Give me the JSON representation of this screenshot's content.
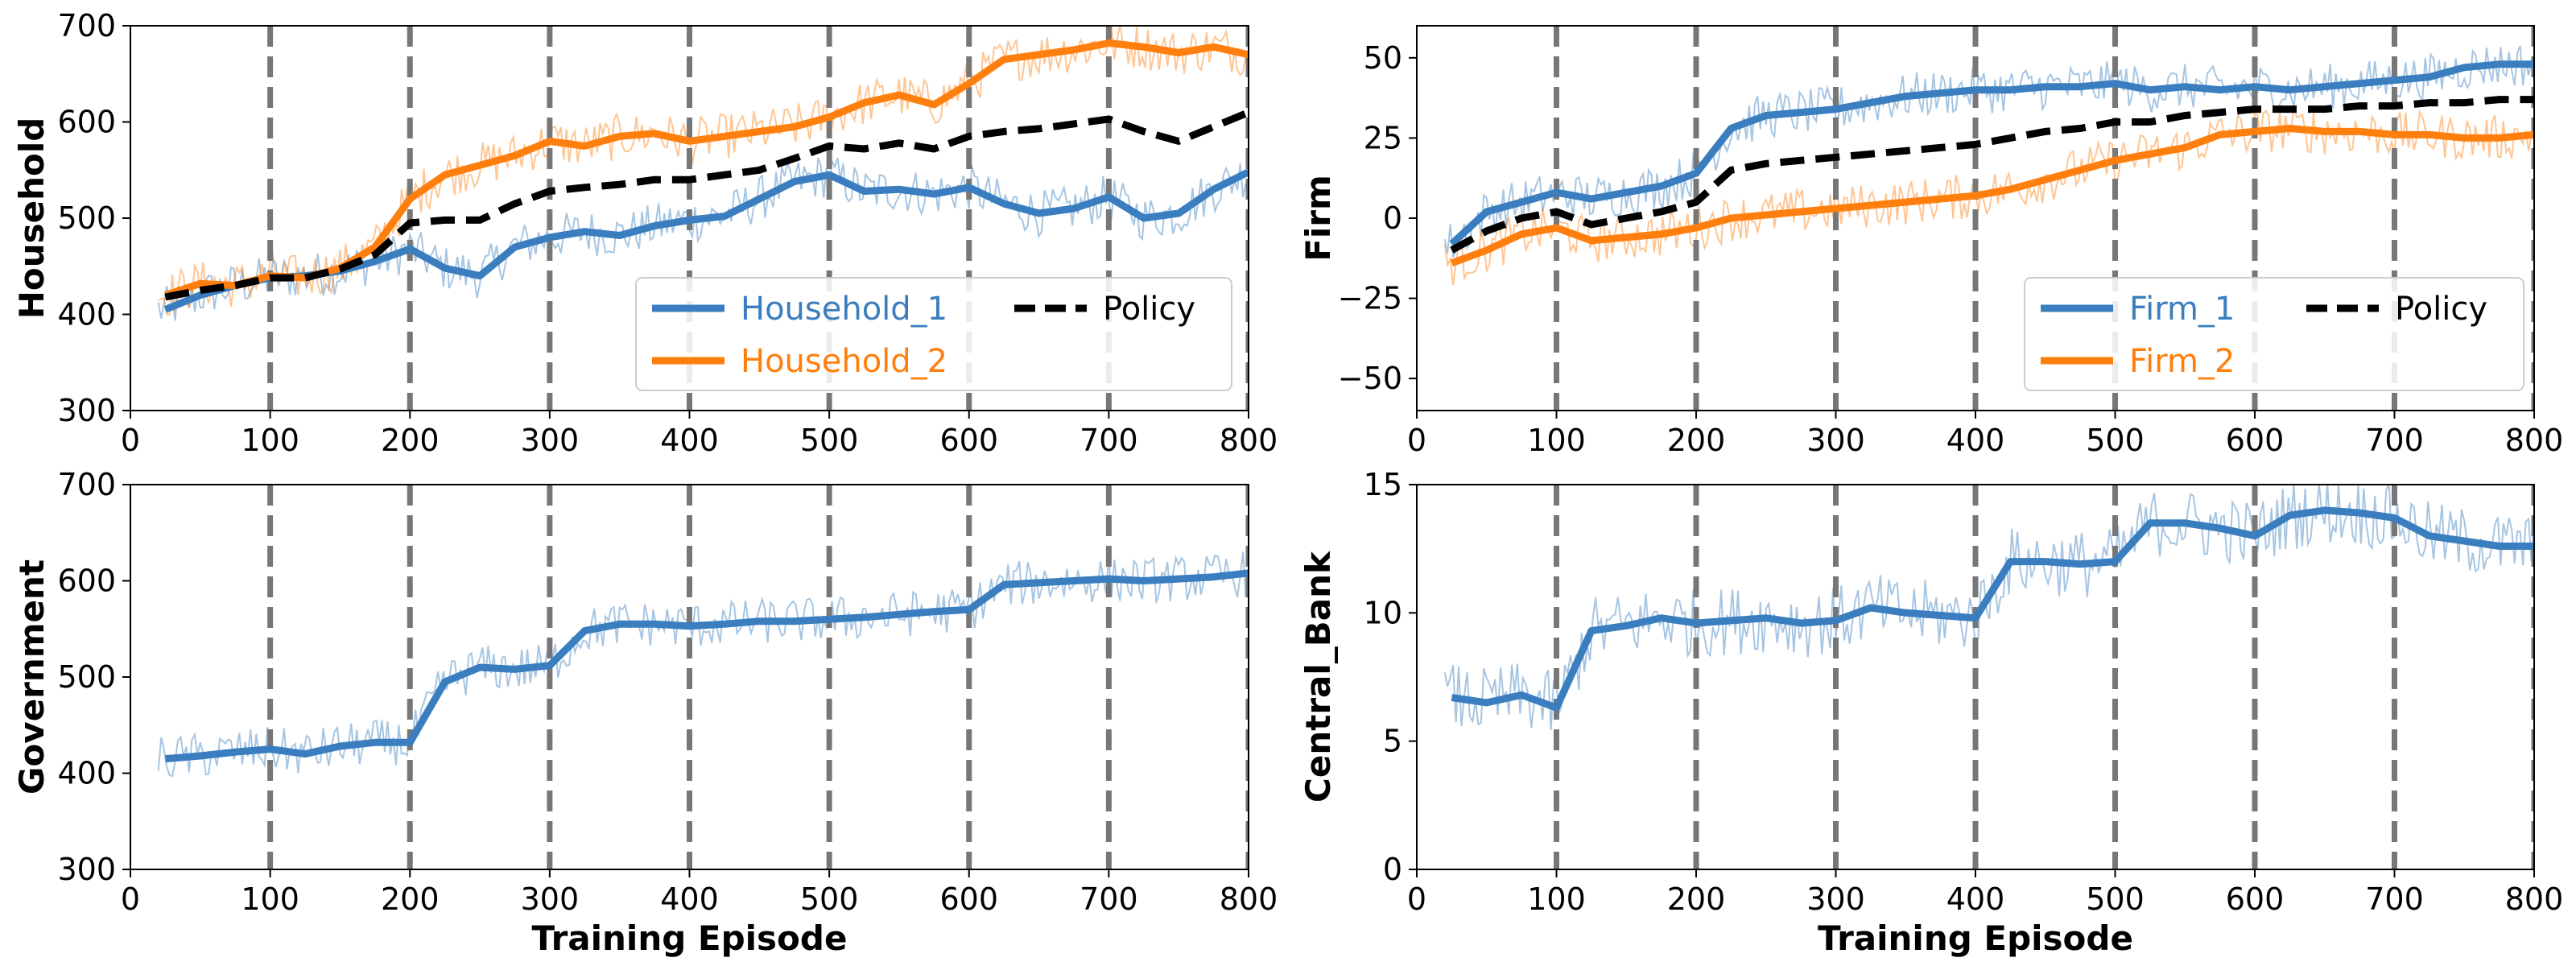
{
  "chart_data": [
    {
      "type": "line",
      "ylabel": "Household",
      "xlabel": "",
      "xlim": [
        0,
        800
      ],
      "ylim": [
        300,
        700
      ],
      "xticks": [
        0,
        100,
        200,
        300,
        400,
        500,
        600,
        700,
        800
      ],
      "yticks": [
        300,
        400,
        500,
        600,
        700
      ],
      "stage_boundaries": [
        100,
        200,
        300,
        400,
        500,
        600,
        700,
        800
      ],
      "legend_position": "lower-right",
      "legend_columns": 2,
      "series": [
        {
          "name": "Household_1",
          "color": "#3a7ebf",
          "style": "solid",
          "x": [
            25,
            50,
            75,
            100,
            125,
            150,
            175,
            200,
            225,
            250,
            275,
            300,
            325,
            350,
            375,
            400,
            425,
            450,
            475,
            500,
            525,
            550,
            575,
            600,
            625,
            650,
            675,
            700,
            725,
            750,
            775,
            800
          ],
          "values": [
            405,
            420,
            430,
            438,
            440,
            445,
            455,
            468,
            448,
            440,
            470,
            480,
            486,
            482,
            492,
            498,
            502,
            520,
            538,
            545,
            528,
            530,
            525,
            532,
            515,
            505,
            510,
            522,
            500,
            505,
            530,
            548
          ]
        },
        {
          "name": "Household_2",
          "color": "#ff7f0e",
          "style": "solid",
          "x": [
            25,
            50,
            75,
            100,
            125,
            150,
            175,
            200,
            225,
            250,
            275,
            300,
            325,
            350,
            375,
            400,
            425,
            450,
            475,
            500,
            525,
            550,
            575,
            600,
            625,
            650,
            675,
            700,
            725,
            750,
            775,
            800
          ],
          "values": [
            420,
            432,
            430,
            440,
            438,
            448,
            470,
            520,
            545,
            555,
            565,
            580,
            575,
            585,
            588,
            580,
            585,
            590,
            595,
            605,
            620,
            628,
            618,
            640,
            665,
            670,
            675,
            682,
            678,
            672,
            678,
            670
          ]
        },
        {
          "name": "Policy",
          "color": "#000000",
          "style": "dashed",
          "x": [
            25,
            50,
            75,
            100,
            125,
            150,
            175,
            200,
            225,
            250,
            275,
            300,
            325,
            350,
            375,
            400,
            425,
            450,
            475,
            500,
            525,
            550,
            575,
            600,
            625,
            650,
            675,
            700,
            725,
            750,
            775,
            800
          ],
          "values": [
            418,
            425,
            430,
            438,
            438,
            447,
            462,
            495,
            498,
            498,
            515,
            528,
            532,
            535,
            540,
            540,
            545,
            550,
            562,
            575,
            572,
            578,
            572,
            585,
            590,
            593,
            598,
            603,
            590,
            580,
            595,
            610
          ]
        }
      ],
      "raw_series_note": "thin translucent traces behind each smoothed line"
    },
    {
      "type": "line",
      "ylabel": "Firm",
      "xlabel": "",
      "xlim": [
        0,
        800
      ],
      "ylim": [
        -60,
        60
      ],
      "xticks": [
        0,
        100,
        200,
        300,
        400,
        500,
        600,
        700,
        800
      ],
      "yticks": [
        -50,
        -25,
        0,
        25,
        50
      ],
      "stage_boundaries": [
        100,
        200,
        300,
        400,
        500,
        600,
        700,
        800
      ],
      "legend_position": "lower-right",
      "legend_columns": 2,
      "series": [
        {
          "name": "Firm_1",
          "color": "#3a7ebf",
          "style": "solid",
          "x": [
            25,
            50,
            75,
            100,
            125,
            150,
            175,
            200,
            225,
            250,
            275,
            300,
            325,
            350,
            375,
            400,
            425,
            450,
            475,
            500,
            525,
            550,
            575,
            600,
            625,
            650,
            675,
            700,
            725,
            750,
            775,
            800
          ],
          "values": [
            -8,
            2,
            5,
            8,
            6,
            8,
            10,
            14,
            28,
            32,
            33,
            34,
            36,
            38,
            39,
            40,
            40,
            41,
            41,
            42,
            40,
            41,
            40,
            41,
            40,
            41,
            42,
            43,
            44,
            47,
            48,
            48
          ]
        },
        {
          "name": "Firm_2",
          "color": "#ff7f0e",
          "style": "solid",
          "x": [
            25,
            50,
            75,
            100,
            125,
            150,
            175,
            200,
            225,
            250,
            275,
            300,
            325,
            350,
            375,
            400,
            425,
            450,
            475,
            500,
            525,
            550,
            575,
            600,
            625,
            650,
            675,
            700,
            725,
            750,
            775,
            800
          ],
          "values": [
            -14,
            -10,
            -5,
            -3,
            -7,
            -6,
            -5,
            -3,
            0,
            1,
            2,
            3,
            4,
            5,
            6,
            7,
            9,
            12,
            15,
            18,
            20,
            22,
            26,
            27,
            28,
            27,
            27,
            26,
            26,
            25,
            25,
            26
          ]
        },
        {
          "name": "Policy",
          "color": "#000000",
          "style": "dashed",
          "x": [
            25,
            50,
            75,
            100,
            125,
            150,
            175,
            200,
            225,
            250,
            275,
            300,
            325,
            350,
            375,
            400,
            425,
            450,
            475,
            500,
            525,
            550,
            575,
            600,
            625,
            650,
            675,
            700,
            725,
            750,
            775,
            800
          ],
          "values": [
            -10,
            -4,
            0,
            2,
            -2,
            0,
            2,
            5,
            15,
            17,
            18,
            19,
            20,
            21,
            22,
            23,
            25,
            27,
            28,
            30,
            30,
            32,
            33,
            34,
            34,
            34,
            35,
            35,
            36,
            36,
            37,
            37
          ]
        }
      ]
    },
    {
      "type": "line",
      "ylabel": "Government",
      "xlabel": "Training Episode",
      "xlim": [
        0,
        800
      ],
      "ylim": [
        300,
        700
      ],
      "xticks": [
        0,
        100,
        200,
        300,
        400,
        500,
        600,
        700,
        800
      ],
      "yticks": [
        300,
        400,
        500,
        600,
        700
      ],
      "stage_boundaries": [
        100,
        200,
        300,
        400,
        500,
        600,
        700,
        800
      ],
      "series": [
        {
          "name": "",
          "color": "#3a7ebf",
          "style": "solid",
          "x": [
            25,
            50,
            75,
            100,
            125,
            150,
            175,
            200,
            225,
            250,
            275,
            300,
            325,
            350,
            375,
            400,
            425,
            450,
            475,
            500,
            525,
            550,
            575,
            600,
            625,
            650,
            675,
            700,
            725,
            750,
            775,
            800
          ],
          "values": [
            415,
            418,
            422,
            425,
            420,
            428,
            432,
            432,
            495,
            510,
            508,
            512,
            548,
            555,
            555,
            553,
            555,
            558,
            558,
            560,
            562,
            565,
            568,
            570,
            596,
            598,
            600,
            602,
            600,
            602,
            604,
            608
          ]
        }
      ]
    },
    {
      "type": "line",
      "ylabel": "Central_Bank",
      "xlabel": "Training Episode",
      "xlim": [
        0,
        800
      ],
      "ylim": [
        0,
        15
      ],
      "xticks": [
        0,
        100,
        200,
        300,
        400,
        500,
        600,
        700,
        800
      ],
      "yticks": [
        0,
        5,
        10,
        15
      ],
      "stage_boundaries": [
        100,
        200,
        300,
        400,
        500,
        600,
        700,
        800
      ],
      "series": [
        {
          "name": "",
          "color": "#3a7ebf",
          "style": "solid",
          "x": [
            25,
            50,
            75,
            100,
            125,
            150,
            175,
            200,
            225,
            250,
            275,
            300,
            325,
            350,
            375,
            400,
            425,
            450,
            475,
            500,
            525,
            550,
            575,
            600,
            625,
            650,
            675,
            700,
            725,
            750,
            775,
            800
          ],
          "values": [
            6.7,
            6.5,
            6.8,
            6.3,
            9.3,
            9.5,
            9.8,
            9.6,
            9.7,
            9.8,
            9.6,
            9.7,
            10.2,
            10.0,
            9.9,
            9.8,
            12.0,
            12.0,
            11.9,
            12.0,
            13.5,
            13.5,
            13.3,
            13.0,
            13.8,
            14.0,
            13.9,
            13.7,
            13.0,
            12.8,
            12.6,
            12.6
          ]
        }
      ]
    }
  ]
}
